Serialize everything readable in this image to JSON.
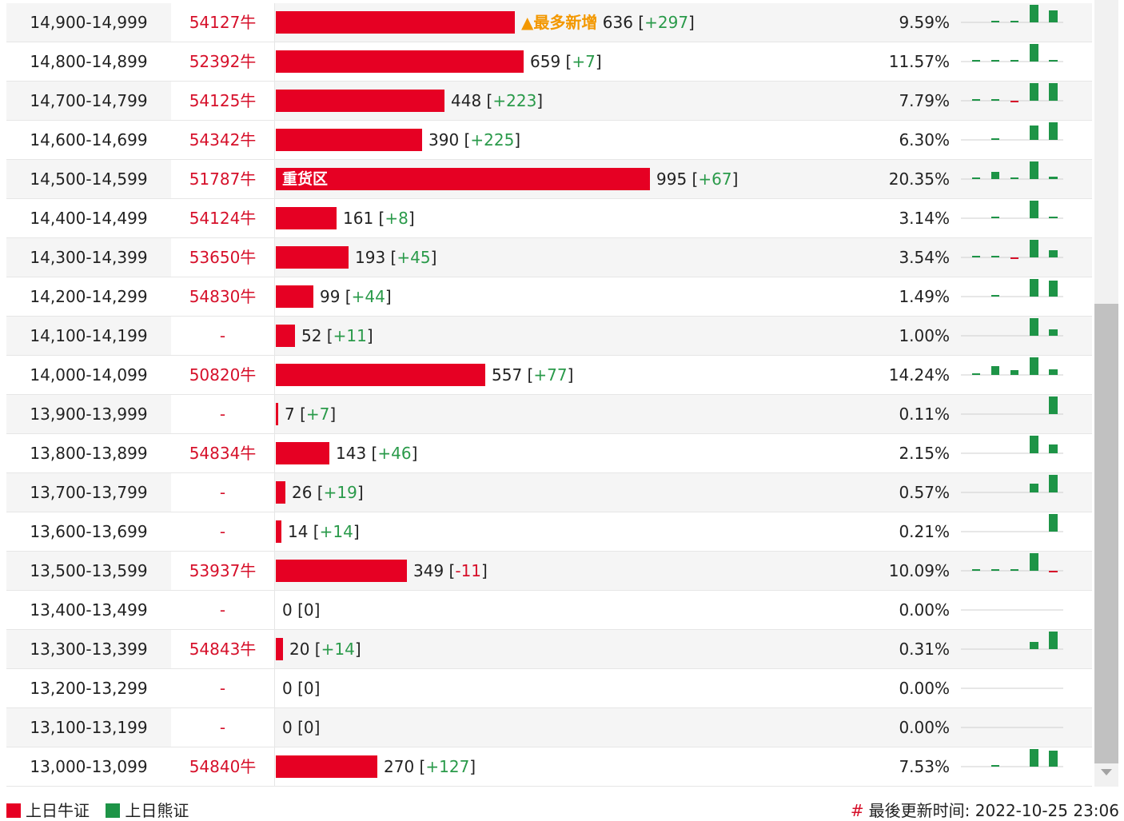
{
  "colors": {
    "bull": "#e60023",
    "bear": "#1e9447",
    "delta_pos": "#2a9a4a",
    "delta_neg": "#d6102a",
    "tag": "#f39800"
  },
  "rows": [
    {
      "range": "14,900-14,999",
      "bull": "54127牛",
      "count": "636",
      "delta": "+297",
      "pct": "9.59%",
      "tag": "▲最多新增",
      "bar_label": "",
      "spark": [
        0,
        0.1,
        0.1,
        0,
        1,
        0.7
      ]
    },
    {
      "range": "14,800-14,899",
      "bull": "52392牛",
      "count": "659",
      "delta": "+7",
      "pct": "11.57%",
      "tag": "",
      "bar_label": "",
      "spark": [
        0.1,
        0.1,
        0.1,
        0,
        1,
        0.1
      ]
    },
    {
      "range": "14,700-14,799",
      "bull": "54125牛",
      "count": "448",
      "delta": "+223",
      "pct": "7.79%",
      "tag": "",
      "bar_label": "",
      "spark": [
        0.1,
        0.1,
        -0.1,
        0,
        1,
        1
      ]
    },
    {
      "range": "14,600-14,699",
      "bull": "54342牛",
      "count": "390",
      "delta": "+225",
      "pct": "6.30%",
      "tag": "",
      "bar_label": "",
      "spark": [
        0,
        0.1,
        0,
        0,
        0.8,
        1
      ]
    },
    {
      "range": "14,500-14,599",
      "bull": "51787牛",
      "count": "995",
      "delta": "+67",
      "pct": "20.35%",
      "tag": "",
      "bar_label": "重货区",
      "spark": [
        0.1,
        0.4,
        0.1,
        0,
        1,
        0.15
      ]
    },
    {
      "range": "14,400-14,499",
      "bull": "54124牛",
      "count": "161",
      "delta": "+8",
      "pct": "3.14%",
      "tag": "",
      "bar_label": "",
      "spark": [
        0,
        0.1,
        0,
        0,
        1,
        0.1
      ]
    },
    {
      "range": "14,300-14,399",
      "bull": "53650牛",
      "count": "193",
      "delta": "+45",
      "pct": "3.54%",
      "tag": "",
      "bar_label": "",
      "spark": [
        0.1,
        0.1,
        -0.1,
        0,
        1,
        0.4
      ]
    },
    {
      "range": "14,200-14,299",
      "bull": "54830牛",
      "count": "99",
      "delta": "+44",
      "pct": "1.49%",
      "tag": "",
      "bar_label": "",
      "spark": [
        0,
        0.1,
        0,
        0,
        1,
        0.9
      ]
    },
    {
      "range": "14,100-14,199",
      "bull": "-",
      "count": "52",
      "delta": "+11",
      "pct": "1.00%",
      "tag": "",
      "bar_label": "",
      "spark": [
        0,
        0,
        0,
        0,
        1,
        0.35
      ]
    },
    {
      "range": "14,000-14,099",
      "bull": "50820牛",
      "count": "557",
      "delta": "+77",
      "pct": "14.24%",
      "tag": "",
      "bar_label": "",
      "spark": [
        0.1,
        0.5,
        0.25,
        0,
        1,
        0.3
      ]
    },
    {
      "range": "13,900-13,999",
      "bull": "-",
      "count": "7",
      "delta": "+7",
      "pct": "0.11%",
      "tag": "",
      "bar_label": "",
      "spark": [
        0,
        0,
        0,
        0,
        0,
        1
      ]
    },
    {
      "range": "13,800-13,899",
      "bull": "54834牛",
      "count": "143",
      "delta": "+46",
      "pct": "2.15%",
      "tag": "",
      "bar_label": "",
      "spark": [
        0,
        0,
        0,
        0,
        1,
        0.5
      ]
    },
    {
      "range": "13,700-13,799",
      "bull": "-",
      "count": "26",
      "delta": "+19",
      "pct": "0.57%",
      "tag": "",
      "bar_label": "",
      "spark": [
        0,
        0,
        0,
        0,
        0.5,
        1
      ]
    },
    {
      "range": "13,600-13,699",
      "bull": "-",
      "count": "14",
      "delta": "+14",
      "pct": "0.21%",
      "tag": "",
      "bar_label": "",
      "spark": [
        0,
        0,
        0,
        0,
        0,
        1
      ]
    },
    {
      "range": "13,500-13,599",
      "bull": "53937牛",
      "count": "349",
      "delta": "-11",
      "pct": "10.09%",
      "tag": "",
      "bar_label": "",
      "spark": [
        0.1,
        0.1,
        0.1,
        0,
        1,
        -0.1
      ]
    },
    {
      "range": "13,400-13,499",
      "bull": "-",
      "count": "0",
      "delta": "0",
      "pct": "0.00%",
      "tag": "",
      "bar_label": "",
      "spark": [
        0,
        0,
        0,
        0,
        0,
        0
      ]
    },
    {
      "range": "13,300-13,399",
      "bull": "54843牛",
      "count": "20",
      "delta": "+14",
      "pct": "0.31%",
      "tag": "",
      "bar_label": "",
      "spark": [
        0,
        0,
        0,
        0,
        0.4,
        1
      ]
    },
    {
      "range": "13,200-13,299",
      "bull": "-",
      "count": "0",
      "delta": "0",
      "pct": "0.00%",
      "tag": "",
      "bar_label": "",
      "spark": [
        0,
        0,
        0,
        0,
        0,
        0
      ]
    },
    {
      "range": "13,100-13,199",
      "bull": "-",
      "count": "0",
      "delta": "0",
      "pct": "0.00%",
      "tag": "",
      "bar_label": "",
      "spark": [
        0,
        0,
        0,
        0,
        0,
        0
      ]
    },
    {
      "range": "13,000-13,099",
      "bull": "54840牛",
      "count": "270",
      "delta": "+127",
      "pct": "7.53%",
      "tag": "",
      "bar_label": "",
      "spark": [
        0,
        0.1,
        0,
        0,
        1,
        0.9
      ]
    }
  ],
  "legend": {
    "bull_label": "上日牛证",
    "bear_label": "上日熊证"
  },
  "update": {
    "hash": "#",
    "text": "最後更新时间: 2022-10-25 23:06"
  }
}
